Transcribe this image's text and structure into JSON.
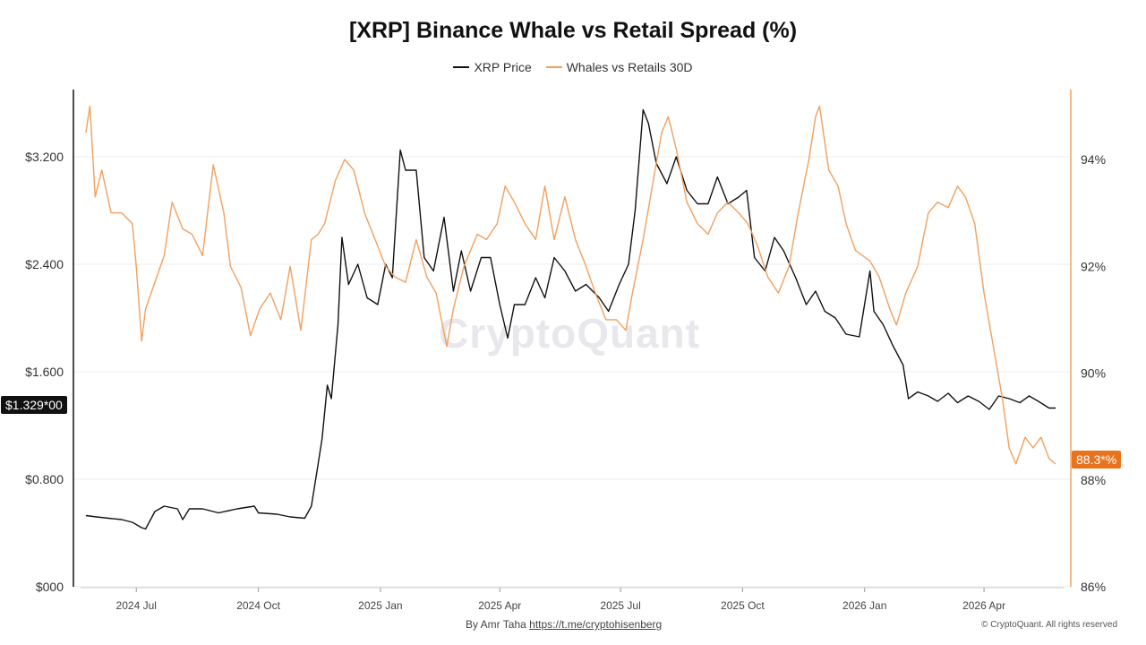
{
  "title": "[XRP] Binance Whale vs Retail Spread (%)",
  "legend": {
    "price_label": "XRP Price",
    "spread_label": "Whales vs Retails 30D"
  },
  "watermark": "CryptoQuant",
  "footer": {
    "by_label": "By Amr Taha",
    "link": "https://t.me/cryptohisenberg",
    "copyright": "© CryptoQuant. All rights reserved"
  },
  "tags": {
    "price_last": "$1.329*00",
    "spread_last": "88.3*%"
  },
  "colors": {
    "price": "#111111",
    "spread": "#f0a060",
    "spread_axis": "#f0a060",
    "spread_tag": "#e8731e",
    "grid": "#eeeeee"
  },
  "chart_data": {
    "type": "line",
    "title": "[XRP] Binance Whale vs Retail Spread (%)",
    "x_ticks": [
      "2024 Jul",
      "2024 Oct",
      "2025 Jan",
      "2025 Apr",
      "2025 Jul",
      "2025 Oct",
      "2026 Jan",
      "2026 Apr"
    ],
    "x_range": [
      "2024-05-20",
      "2026-05-31"
    ],
    "y_left": {
      "ticks": [
        "$000",
        "$0.800",
        "$1.600",
        "$2.400",
        "$3.200"
      ],
      "ylim": [
        0,
        3.2
      ]
    },
    "y_right": {
      "ticks": [
        "86%",
        "88%",
        "90%",
        "92%",
        "94%"
      ],
      "ylim": [
        86,
        94
      ]
    },
    "grid": true,
    "legend_position": "top-center",
    "series": [
      {
        "name": "XRP Price",
        "axis": "left",
        "points": [
          [
            "2024-05-24",
            0.53
          ],
          [
            "2024-06-01",
            0.52
          ],
          [
            "2024-06-10",
            0.51
          ],
          [
            "2024-06-20",
            0.5
          ],
          [
            "2024-06-28",
            0.48
          ],
          [
            "2024-07-05",
            0.44
          ],
          [
            "2024-07-08",
            0.43
          ],
          [
            "2024-07-15",
            0.56
          ],
          [
            "2024-07-22",
            0.6
          ],
          [
            "2024-08-01",
            0.58
          ],
          [
            "2024-08-05",
            0.5
          ],
          [
            "2024-08-10",
            0.58
          ],
          [
            "2024-08-20",
            0.58
          ],
          [
            "2024-09-01",
            0.55
          ],
          [
            "2024-09-15",
            0.58
          ],
          [
            "2024-09-28",
            0.6
          ],
          [
            "2024-10-01",
            0.55
          ],
          [
            "2024-10-15",
            0.54
          ],
          [
            "2024-10-25",
            0.52
          ],
          [
            "2024-11-05",
            0.51
          ],
          [
            "2024-11-10",
            0.6
          ],
          [
            "2024-11-14",
            0.85
          ],
          [
            "2024-11-18",
            1.1
          ],
          [
            "2024-11-22",
            1.5
          ],
          [
            "2024-11-25",
            1.4
          ],
          [
            "2024-11-30",
            1.95
          ],
          [
            "2024-12-03",
            2.6
          ],
          [
            "2024-12-08",
            2.25
          ],
          [
            "2024-12-15",
            2.4
          ],
          [
            "2024-12-22",
            2.15
          ],
          [
            "2024-12-30",
            2.1
          ],
          [
            "2025-01-05",
            2.4
          ],
          [
            "2025-01-10",
            2.3
          ],
          [
            "2025-01-16",
            3.25
          ],
          [
            "2025-01-20",
            3.1
          ],
          [
            "2025-01-28",
            3.1
          ],
          [
            "2025-02-03",
            2.45
          ],
          [
            "2025-02-10",
            2.35
          ],
          [
            "2025-02-18",
            2.75
          ],
          [
            "2025-02-25",
            2.2
          ],
          [
            "2025-03-03",
            2.5
          ],
          [
            "2025-03-10",
            2.2
          ],
          [
            "2025-03-18",
            2.45
          ],
          [
            "2025-03-25",
            2.45
          ],
          [
            "2025-04-01",
            2.1
          ],
          [
            "2025-04-07",
            1.85
          ],
          [
            "2025-04-12",
            2.1
          ],
          [
            "2025-04-20",
            2.1
          ],
          [
            "2025-04-28",
            2.3
          ],
          [
            "2025-05-05",
            2.15
          ],
          [
            "2025-05-12",
            2.45
          ],
          [
            "2025-05-20",
            2.35
          ],
          [
            "2025-05-28",
            2.2
          ],
          [
            "2025-06-05",
            2.25
          ],
          [
            "2025-06-15",
            2.15
          ],
          [
            "2025-06-22",
            2.05
          ],
          [
            "2025-06-30",
            2.25
          ],
          [
            "2025-07-07",
            2.4
          ],
          [
            "2025-07-12",
            2.8
          ],
          [
            "2025-07-18",
            3.55
          ],
          [
            "2025-07-22",
            3.45
          ],
          [
            "2025-07-28",
            3.15
          ],
          [
            "2025-08-05",
            3.0
          ],
          [
            "2025-08-12",
            3.2
          ],
          [
            "2025-08-20",
            2.95
          ],
          [
            "2025-08-28",
            2.85
          ],
          [
            "2025-09-05",
            2.85
          ],
          [
            "2025-09-12",
            3.05
          ],
          [
            "2025-09-20",
            2.85
          ],
          [
            "2025-09-28",
            2.9
          ],
          [
            "2025-10-04",
            2.95
          ],
          [
            "2025-10-10",
            2.45
          ],
          [
            "2025-10-18",
            2.35
          ],
          [
            "2025-10-25",
            2.6
          ],
          [
            "2025-11-01",
            2.5
          ],
          [
            "2025-11-10",
            2.3
          ],
          [
            "2025-11-18",
            2.1
          ],
          [
            "2025-11-25",
            2.2
          ],
          [
            "2025-12-02",
            2.05
          ],
          [
            "2025-12-10",
            2.0
          ],
          [
            "2025-12-18",
            1.88
          ],
          [
            "2025-12-28",
            1.86
          ],
          [
            "2026-01-05",
            2.35
          ],
          [
            "2026-01-08",
            2.05
          ],
          [
            "2026-01-15",
            1.95
          ],
          [
            "2026-01-22",
            1.8
          ],
          [
            "2026-01-30",
            1.65
          ],
          [
            "2026-02-03",
            1.4
          ],
          [
            "2026-02-10",
            1.45
          ],
          [
            "2026-02-18",
            1.42
          ],
          [
            "2026-02-25",
            1.38
          ],
          [
            "2026-03-05",
            1.44
          ],
          [
            "2026-03-12",
            1.37
          ],
          [
            "2026-03-20",
            1.42
          ],
          [
            "2026-03-28",
            1.38
          ],
          [
            "2026-04-05",
            1.32
          ],
          [
            "2026-04-12",
            1.42
          ],
          [
            "2026-04-20",
            1.4
          ],
          [
            "2026-04-28",
            1.37
          ],
          [
            "2026-05-05",
            1.42
          ],
          [
            "2026-05-12",
            1.38
          ],
          [
            "2026-05-20",
            1.33
          ],
          [
            "2026-05-25",
            1.33
          ]
        ]
      },
      {
        "name": "Whales vs Retails 30D",
        "axis": "right",
        "points": [
          [
            "2024-05-24",
            94.5
          ],
          [
            "2024-05-27",
            95.0
          ],
          [
            "2024-05-31",
            93.3
          ],
          [
            "2024-06-05",
            93.8
          ],
          [
            "2024-06-12",
            93.0
          ],
          [
            "2024-06-20",
            93.0
          ],
          [
            "2024-06-28",
            92.8
          ],
          [
            "2024-07-01",
            92.0
          ],
          [
            "2024-07-05",
            90.6
          ],
          [
            "2024-07-08",
            91.2
          ],
          [
            "2024-07-15",
            91.7
          ],
          [
            "2024-07-22",
            92.2
          ],
          [
            "2024-07-28",
            93.2
          ],
          [
            "2024-08-05",
            92.7
          ],
          [
            "2024-08-12",
            92.6
          ],
          [
            "2024-08-20",
            92.2
          ],
          [
            "2024-08-28",
            93.9
          ],
          [
            "2024-09-05",
            93.0
          ],
          [
            "2024-09-10",
            92.0
          ],
          [
            "2024-09-18",
            91.6
          ],
          [
            "2024-09-25",
            90.7
          ],
          [
            "2024-10-02",
            91.2
          ],
          [
            "2024-10-10",
            91.5
          ],
          [
            "2024-10-18",
            91.0
          ],
          [
            "2024-10-25",
            92.0
          ],
          [
            "2024-11-02",
            90.8
          ],
          [
            "2024-11-10",
            92.5
          ],
          [
            "2024-11-15",
            92.6
          ],
          [
            "2024-11-20",
            92.8
          ],
          [
            "2024-11-28",
            93.6
          ],
          [
            "2024-12-05",
            94.0
          ],
          [
            "2024-12-12",
            93.8
          ],
          [
            "2024-12-20",
            93.0
          ],
          [
            "2024-12-28",
            92.5
          ],
          [
            "2025-01-05",
            92.0
          ],
          [
            "2025-01-12",
            91.8
          ],
          [
            "2025-01-20",
            91.7
          ],
          [
            "2025-01-28",
            92.5
          ],
          [
            "2025-02-05",
            91.8
          ],
          [
            "2025-02-12",
            91.5
          ],
          [
            "2025-02-20",
            90.5
          ],
          [
            "2025-02-25",
            91.2
          ],
          [
            "2025-03-05",
            92.0
          ],
          [
            "2025-03-15",
            92.6
          ],
          [
            "2025-03-22",
            92.5
          ],
          [
            "2025-03-30",
            92.8
          ],
          [
            "2025-04-05",
            93.5
          ],
          [
            "2025-04-12",
            93.2
          ],
          [
            "2025-04-20",
            92.8
          ],
          [
            "2025-04-28",
            92.5
          ],
          [
            "2025-05-05",
            93.5
          ],
          [
            "2025-05-12",
            92.5
          ],
          [
            "2025-05-20",
            93.3
          ],
          [
            "2025-05-28",
            92.5
          ],
          [
            "2025-06-05",
            92.0
          ],
          [
            "2025-06-12",
            91.5
          ],
          [
            "2025-06-20",
            91.0
          ],
          [
            "2025-06-28",
            91.0
          ],
          [
            "2025-07-05",
            90.8
          ],
          [
            "2025-07-10",
            91.5
          ],
          [
            "2025-07-18",
            92.5
          ],
          [
            "2025-07-25",
            93.5
          ],
          [
            "2025-08-01",
            94.5
          ],
          [
            "2025-08-06",
            94.8
          ],
          [
            "2025-08-12",
            94.2
          ],
          [
            "2025-08-20",
            93.2
          ],
          [
            "2025-08-28",
            92.8
          ],
          [
            "2025-09-05",
            92.6
          ],
          [
            "2025-09-12",
            93.0
          ],
          [
            "2025-09-20",
            93.2
          ],
          [
            "2025-09-28",
            93.0
          ],
          [
            "2025-10-05",
            92.8
          ],
          [
            "2025-10-12",
            92.4
          ],
          [
            "2025-10-20",
            91.8
          ],
          [
            "2025-10-28",
            91.5
          ],
          [
            "2025-11-05",
            92.0
          ],
          [
            "2025-11-12",
            93.0
          ],
          [
            "2025-11-20",
            94.0
          ],
          [
            "2025-11-25",
            94.8
          ],
          [
            "2025-11-28",
            95.0
          ],
          [
            "2025-12-05",
            93.8
          ],
          [
            "2025-12-12",
            93.5
          ],
          [
            "2025-12-18",
            92.8
          ],
          [
            "2025-12-25",
            92.3
          ],
          [
            "2026-01-05",
            92.1
          ],
          [
            "2026-01-12",
            91.8
          ],
          [
            "2026-01-20",
            91.2
          ],
          [
            "2026-01-25",
            90.9
          ],
          [
            "2026-02-01",
            91.5
          ],
          [
            "2026-02-10",
            92.0
          ],
          [
            "2026-02-18",
            93.0
          ],
          [
            "2026-02-25",
            93.2
          ],
          [
            "2026-03-05",
            93.1
          ],
          [
            "2026-03-12",
            93.5
          ],
          [
            "2026-03-18",
            93.3
          ],
          [
            "2026-03-25",
            92.8
          ],
          [
            "2026-04-01",
            91.5
          ],
          [
            "2026-04-08",
            90.5
          ],
          [
            "2026-04-15",
            89.5
          ],
          [
            "2026-04-20",
            88.6
          ],
          [
            "2026-04-25",
            88.3
          ],
          [
            "2026-05-02",
            88.8
          ],
          [
            "2026-05-08",
            88.6
          ],
          [
            "2026-05-14",
            88.8
          ],
          [
            "2026-05-20",
            88.4
          ],
          [
            "2026-05-25",
            88.3
          ]
        ]
      }
    ]
  }
}
